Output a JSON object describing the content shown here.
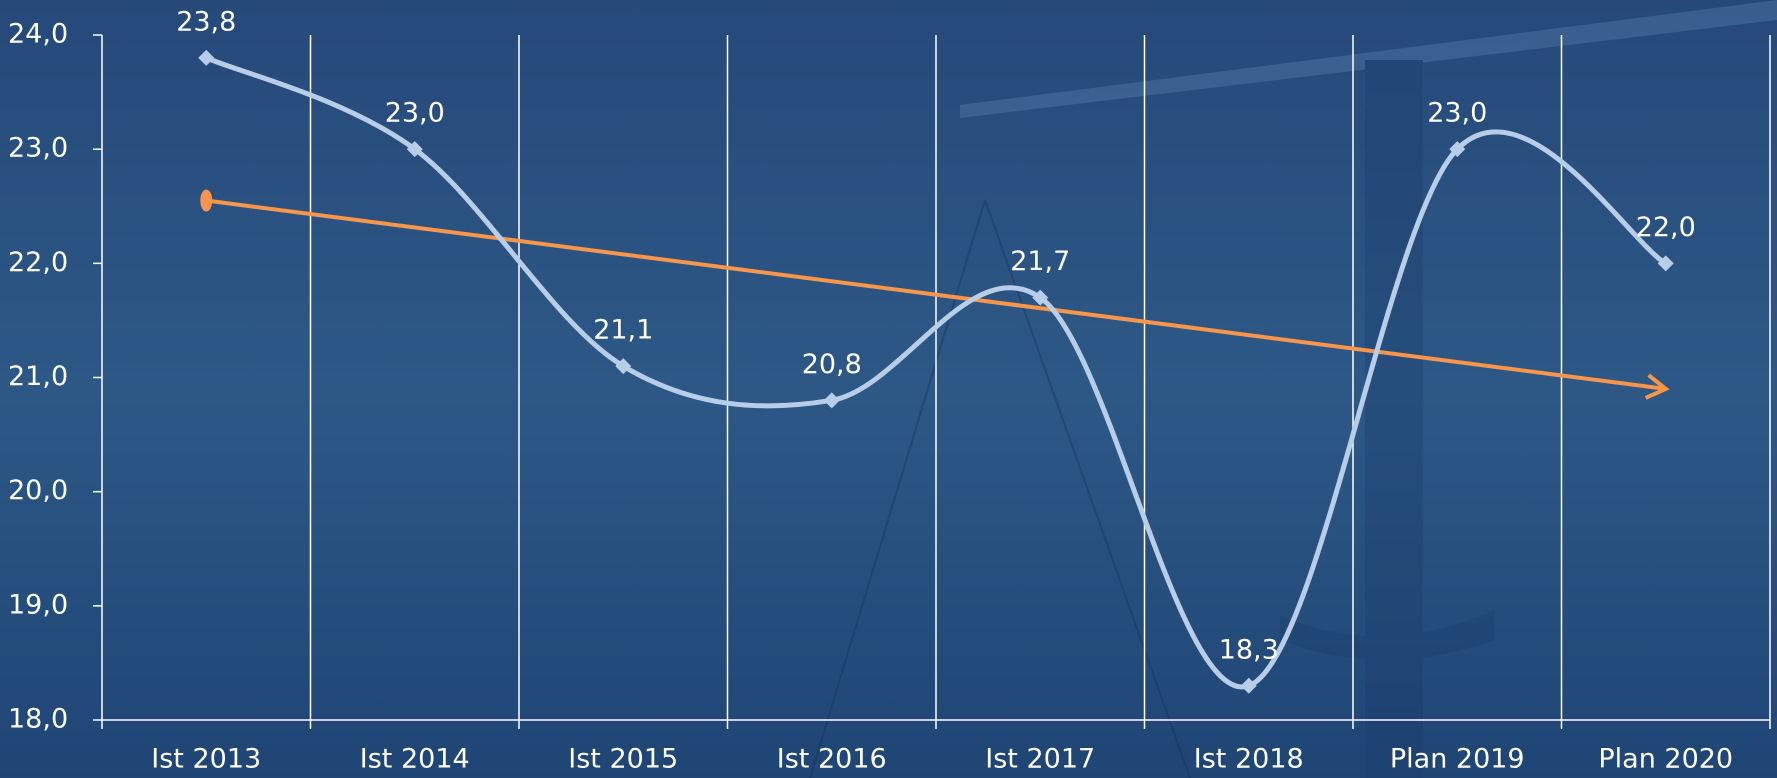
{
  "chart_data": {
    "type": "line",
    "categories": [
      "Ist 2013",
      "Ist 2014",
      "Ist 2015",
      "Ist 2016",
      "Ist 2017",
      "Ist 2018",
      "Plan 2019",
      "Plan 2020"
    ],
    "series": [
      {
        "color": "#b8cde8",
        "values": [
          23.8,
          23.0,
          21.1,
          20.8,
          21.7,
          18.3,
          23.0,
          22.0
        ],
        "value_labels": [
          "23,8",
          "23,0",
          "21,1",
          "20,8",
          "21,7",
          "18,3",
          "23,0",
          "22,0"
        ]
      }
    ],
    "trend": {
      "color": "#f7964a",
      "values": [
        22.55,
        20.9
      ]
    },
    "ylim": [
      18,
      24
    ],
    "yticks": [
      {
        "value": 18,
        "label": "18,0"
      },
      {
        "value": 19,
        "label": "19,0"
      },
      {
        "value": 20,
        "label": "20,0"
      },
      {
        "value": 21,
        "label": "21,0"
      },
      {
        "value": 22,
        "label": "22,0"
      },
      {
        "value": 23,
        "label": "23,0"
      },
      {
        "value": 24,
        "label": "24,0"
      }
    ]
  }
}
